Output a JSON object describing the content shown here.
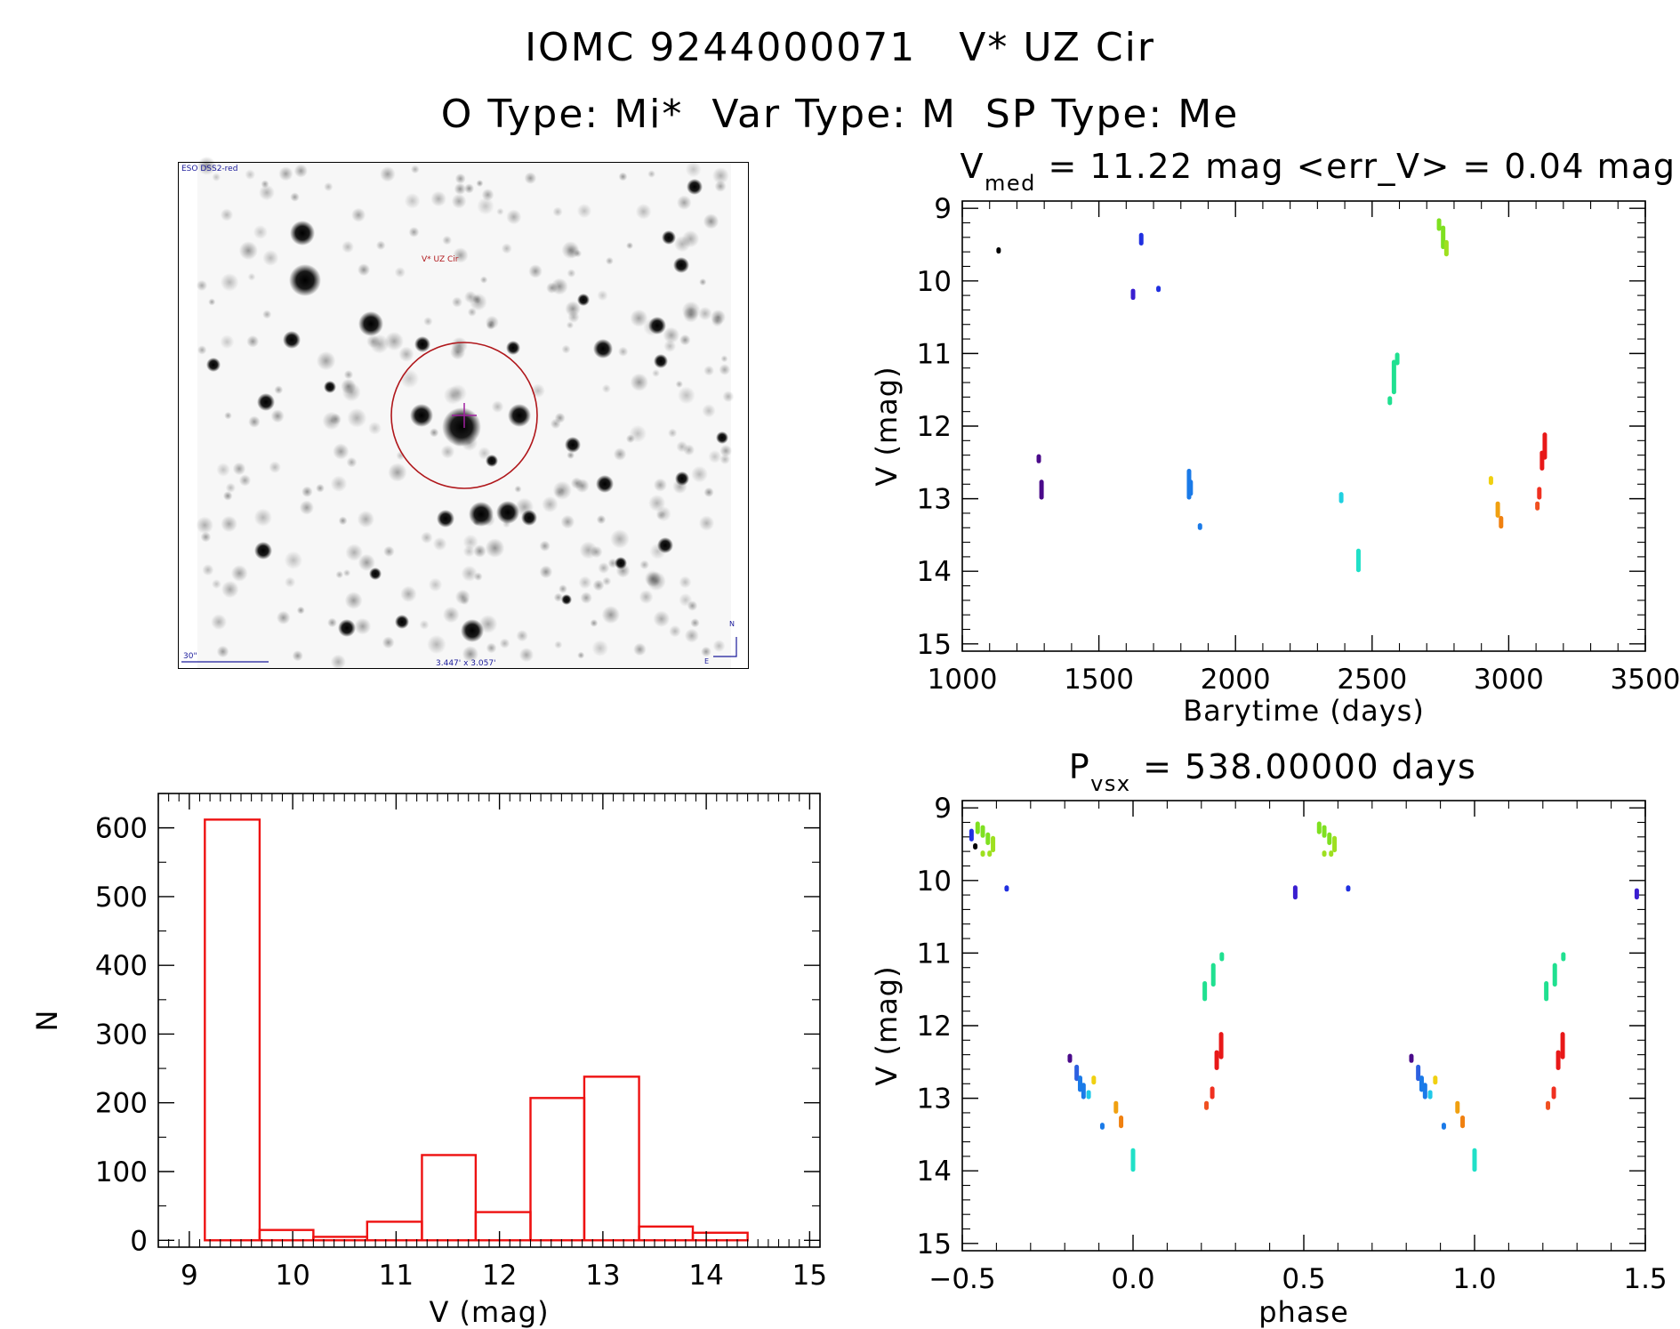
{
  "header": {
    "title": "IOMC 9244000071   V* UZ Cir",
    "subtitle": "O Type: Mi*  Var Type: M  SP Type: Me"
  },
  "finder_chart": {
    "survey_label": "ESO DSS2-red",
    "target_label": "V* UZ Cir",
    "scale_bar_label": "30\"",
    "field_size_label": "3.447' x 3.057'",
    "north_label": "N",
    "east_label": "E"
  },
  "chart_data": [
    {
      "type": "scatter",
      "panel": "light-curve",
      "title": {
        "main": "V",
        "sub": "med",
        "rest": " = 11.22 mag <err_V> = 0.04 mag"
      },
      "xlabel": "Barytime (days)",
      "ylabel": "V (mag)",
      "xlim": [
        1000,
        3500
      ],
      "ylim": [
        15.1,
        8.9
      ],
      "x_ticks": [
        1000,
        1500,
        2000,
        2500,
        3000,
        3500
      ],
      "y_ticks": [
        9,
        10,
        11,
        12,
        13,
        14,
        15
      ],
      "x_minor_step": 100,
      "y_minor_step": 0.2,
      "segments": [
        {
          "x": 1133,
          "y0": 9.55,
          "y1": 9.55,
          "color": "#000000"
        },
        {
          "x": 1280,
          "y0": 12.4,
          "y1": 12.5,
          "color": "#4a0a8a"
        },
        {
          "x": 1290,
          "y0": 12.75,
          "y1": 13.0,
          "color": "#4a0a8a"
        },
        {
          "x": 1625,
          "y0": 10.12,
          "y1": 10.25,
          "color": "#3a1ed0"
        },
        {
          "x": 1655,
          "y0": 9.35,
          "y1": 9.5,
          "color": "#2030e0"
        },
        {
          "x": 1718,
          "y0": 10.08,
          "y1": 10.12,
          "color": "#2030e0"
        },
        {
          "x": 1830,
          "y0": 12.6,
          "y1": 13.0,
          "color": "#1a7ae8"
        },
        {
          "x": 1836,
          "y0": 12.75,
          "y1": 12.95,
          "color": "#1a7ae8"
        },
        {
          "x": 1870,
          "y0": 13.35,
          "y1": 13.42,
          "color": "#1a7ae8"
        },
        {
          "x": 2387,
          "y0": 12.92,
          "y1": 13.05,
          "color": "#20d0e0"
        },
        {
          "x": 2450,
          "y0": 13.7,
          "y1": 14.0,
          "color": "#20e0c8"
        },
        {
          "x": 2565,
          "y0": 11.6,
          "y1": 11.7,
          "color": "#20e090"
        },
        {
          "x": 2580,
          "y0": 11.1,
          "y1": 11.55,
          "color": "#20e090"
        },
        {
          "x": 2592,
          "y0": 11.0,
          "y1": 11.15,
          "color": "#20e090"
        },
        {
          "x": 2745,
          "y0": 9.15,
          "y1": 9.3,
          "color": "#7ee020"
        },
        {
          "x": 2760,
          "y0": 9.25,
          "y1": 9.55,
          "color": "#7ee020"
        },
        {
          "x": 2772,
          "y0": 9.45,
          "y1": 9.65,
          "color": "#9ee020"
        },
        {
          "x": 2935,
          "y0": 12.7,
          "y1": 12.8,
          "color": "#f0d010"
        },
        {
          "x": 2960,
          "y0": 13.05,
          "y1": 13.25,
          "color": "#f0a010"
        },
        {
          "x": 2972,
          "y0": 13.25,
          "y1": 13.4,
          "color": "#f08010"
        },
        {
          "x": 3105,
          "y0": 13.05,
          "y1": 13.15,
          "color": "#f05020"
        },
        {
          "x": 3112,
          "y0": 12.85,
          "y1": 13.0,
          "color": "#f03020"
        },
        {
          "x": 3122,
          "y0": 12.35,
          "y1": 12.6,
          "color": "#e81818"
        },
        {
          "x": 3132,
          "y0": 12.1,
          "y1": 12.45,
          "color": "#e81818"
        }
      ]
    },
    {
      "type": "bar",
      "panel": "histogram",
      "xlabel": "V (mag)",
      "ylabel": "N",
      "xlim": [
        8.7,
        15.1
      ],
      "ylim": [
        -10,
        650
      ],
      "x_ticks": [
        9,
        10,
        11,
        12,
        13,
        14,
        15
      ],
      "y_ticks": [
        0,
        100,
        200,
        300,
        400,
        500,
        600
      ],
      "x_minor_step": 0.1,
      "y_minor_step": 50,
      "bin_edges": [
        9.15,
        9.68,
        10.2,
        10.72,
        11.25,
        11.77,
        12.3,
        12.82,
        13.35,
        13.87,
        14.4
      ],
      "values": [
        612,
        15,
        5,
        27,
        124,
        41,
        207,
        238,
        20,
        11
      ],
      "bar_color": "#ee1111"
    },
    {
      "type": "scatter",
      "panel": "phase-folded",
      "title": {
        "main": "P",
        "sub": "vsx",
        "rest": " = 538.00000 days"
      },
      "xlabel": "phase",
      "ylabel": "V (mag)",
      "xlim": [
        -0.5,
        1.5
      ],
      "ylim": [
        15.1,
        8.9
      ],
      "x_ticks": [
        -0.5,
        0.0,
        0.5,
        1.0,
        1.5
      ],
      "x_tick_labels": [
        "−0.5",
        "0.0",
        "0.5",
        "1.0",
        "1.5"
      ],
      "y_ticks": [
        9,
        10,
        11,
        12,
        13,
        14,
        15
      ],
      "x_minor_step": 0.1,
      "y_minor_step": 0.2,
      "segments": [
        {
          "x": -0.473,
          "y0": 9.3,
          "y1": 9.45,
          "color": "#2030e0"
        },
        {
          "x": -0.455,
          "y0": 9.2,
          "y1": 9.35,
          "color": "#7ee020"
        },
        {
          "x": -0.44,
          "y0": 9.25,
          "y1": 9.4,
          "color": "#7ee020"
        },
        {
          "x": -0.425,
          "y0": 9.35,
          "y1": 9.5,
          "color": "#7ee020"
        },
        {
          "x": -0.41,
          "y0": 9.4,
          "y1": 9.6,
          "color": "#9ee020"
        },
        {
          "x": -0.462,
          "y0": 9.5,
          "y1": 9.55,
          "color": "#000000"
        },
        {
          "x": -0.44,
          "y0": 9.6,
          "y1": 9.65,
          "color": "#9ee020"
        },
        {
          "x": -0.42,
          "y0": 9.6,
          "y1": 9.65,
          "color": "#9ee020"
        },
        {
          "x": -0.37,
          "y0": 10.08,
          "y1": 10.12,
          "color": "#2030e0"
        },
        {
          "x": 0.21,
          "y0": 11.4,
          "y1": 11.65,
          "color": "#20e090"
        },
        {
          "x": 0.235,
          "y0": 11.15,
          "y1": 11.45,
          "color": "#20e090"
        },
        {
          "x": 0.26,
          "y0": 11.0,
          "y1": 11.1,
          "color": "#20e090"
        },
        {
          "x": 0.215,
          "y0": 13.05,
          "y1": 13.15,
          "color": "#f05020"
        },
        {
          "x": 0.232,
          "y0": 12.85,
          "y1": 13.0,
          "color": "#f03020"
        },
        {
          "x": 0.245,
          "y0": 12.35,
          "y1": 12.6,
          "color": "#e81818"
        },
        {
          "x": 0.258,
          "y0": 12.1,
          "y1": 12.45,
          "color": "#e81818"
        },
        {
          "x": -0.185,
          "y0": 12.4,
          "y1": 12.5,
          "color": "#4a0a8a"
        },
        {
          "x": -0.165,
          "y0": 12.55,
          "y1": 12.75,
          "color": "#2d60e0"
        },
        {
          "x": -0.155,
          "y0": 12.7,
          "y1": 12.9,
          "color": "#1a7ae8"
        },
        {
          "x": -0.145,
          "y0": 12.8,
          "y1": 13.0,
          "color": "#1a7ae8"
        },
        {
          "x": -0.13,
          "y0": 12.9,
          "y1": 13.0,
          "color": "#20c8e8"
        },
        {
          "x": -0.115,
          "y0": 12.7,
          "y1": 12.8,
          "color": "#f0d010"
        },
        {
          "x": -0.09,
          "y0": 13.35,
          "y1": 13.42,
          "color": "#1a7ae8"
        },
        {
          "x": -0.05,
          "y0": 13.05,
          "y1": 13.2,
          "color": "#f0a010"
        },
        {
          "x": -0.035,
          "y0": 13.25,
          "y1": 13.4,
          "color": "#f08010"
        },
        {
          "x": 0.0,
          "y0": 13.7,
          "y1": 14.0,
          "color": "#20e0c8"
        },
        {
          "x": 0.475,
          "y0": 10.08,
          "y1": 10.25,
          "color": "#3a1ed0"
        },
        {
          "x": 0.545,
          "y0": 9.2,
          "y1": 9.35,
          "color": "#7ee020"
        },
        {
          "x": 0.56,
          "y0": 9.25,
          "y1": 9.4,
          "color": "#7ee020"
        },
        {
          "x": 0.575,
          "y0": 9.35,
          "y1": 9.5,
          "color": "#7ee020"
        },
        {
          "x": 0.59,
          "y0": 9.4,
          "y1": 9.6,
          "color": "#9ee020"
        },
        {
          "x": 0.56,
          "y0": 9.6,
          "y1": 9.65,
          "color": "#9ee020"
        },
        {
          "x": 0.58,
          "y0": 9.6,
          "y1": 9.65,
          "color": "#9ee020"
        },
        {
          "x": 0.63,
          "y0": 10.08,
          "y1": 10.12,
          "color": "#2030e0"
        },
        {
          "x": 0.815,
          "y0": 12.4,
          "y1": 12.5,
          "color": "#4a0a8a"
        },
        {
          "x": 0.835,
          "y0": 12.55,
          "y1": 12.75,
          "color": "#2d60e0"
        },
        {
          "x": 0.845,
          "y0": 12.7,
          "y1": 12.9,
          "color": "#1a7ae8"
        },
        {
          "x": 0.855,
          "y0": 12.8,
          "y1": 13.0,
          "color": "#1a7ae8"
        },
        {
          "x": 0.87,
          "y0": 12.9,
          "y1": 13.0,
          "color": "#20c8e8"
        },
        {
          "x": 0.885,
          "y0": 12.7,
          "y1": 12.8,
          "color": "#f0d010"
        },
        {
          "x": 0.91,
          "y0": 13.35,
          "y1": 13.42,
          "color": "#1a7ae8"
        },
        {
          "x": 0.95,
          "y0": 13.05,
          "y1": 13.2,
          "color": "#f0a010"
        },
        {
          "x": 0.965,
          "y0": 13.25,
          "y1": 13.4,
          "color": "#f08010"
        },
        {
          "x": 1.0,
          "y0": 13.7,
          "y1": 14.0,
          "color": "#20e0c8"
        },
        {
          "x": 1.21,
          "y0": 11.4,
          "y1": 11.65,
          "color": "#20e090"
        },
        {
          "x": 1.235,
          "y0": 11.15,
          "y1": 11.45,
          "color": "#20e090"
        },
        {
          "x": 1.26,
          "y0": 11.0,
          "y1": 11.1,
          "color": "#20e090"
        },
        {
          "x": 1.215,
          "y0": 13.05,
          "y1": 13.15,
          "color": "#f05020"
        },
        {
          "x": 1.232,
          "y0": 12.85,
          "y1": 13.0,
          "color": "#f03020"
        },
        {
          "x": 1.245,
          "y0": 12.35,
          "y1": 12.6,
          "color": "#e81818"
        },
        {
          "x": 1.258,
          "y0": 12.1,
          "y1": 12.45,
          "color": "#e81818"
        },
        {
          "x": 1.475,
          "y0": 10.12,
          "y1": 10.25,
          "color": "#3a1ed0"
        }
      ]
    }
  ]
}
